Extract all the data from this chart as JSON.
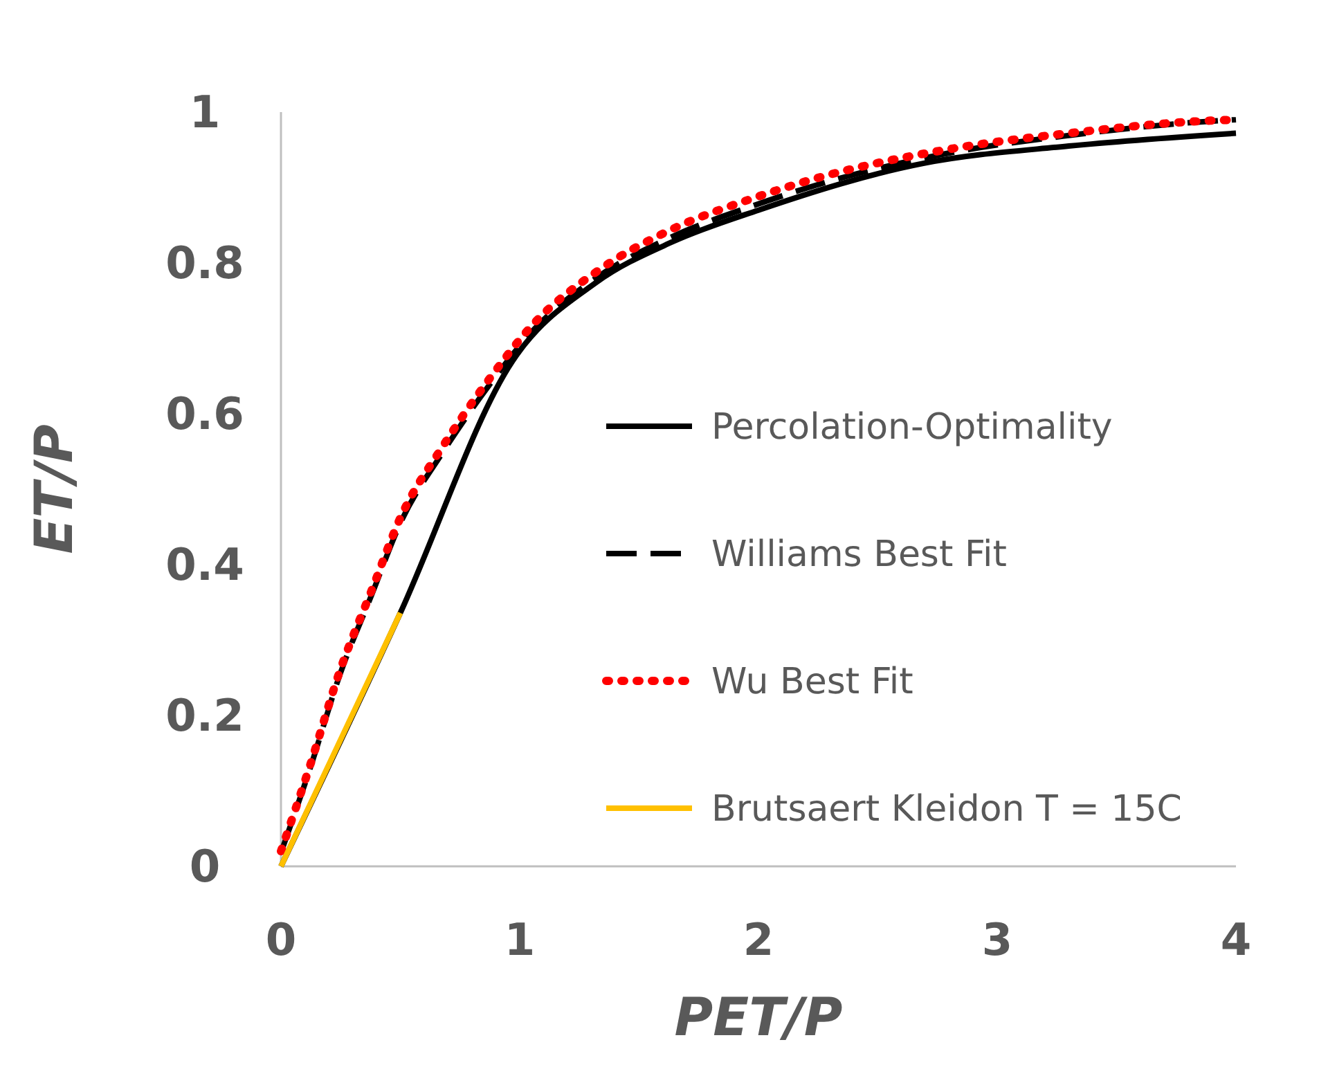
{
  "chart_data": {
    "type": "line",
    "xlabel": "PET/P",
    "ylabel": "ET/P",
    "xlim": [
      0,
      4
    ],
    "xticks": [
      0,
      1,
      2,
      3,
      4
    ],
    "ylim": [
      0,
      1
    ],
    "yticks": [
      0,
      0.2,
      0.4,
      0.6,
      0.8,
      1
    ],
    "grid": false,
    "legend": "bottom right",
    "series": [
      {
        "name": "Percolation-Optimality",
        "color": "#000000",
        "line_style": "solid",
        "x": [
          0,
          0.5,
          0.97,
          1.32,
          1.64,
          2.0,
          2.69,
          3.3,
          4
        ],
        "values": [
          0,
          0.336,
          0.67,
          0.774,
          0.828,
          0.87,
          0.932,
          0.955,
          0.972
        ]
      },
      {
        "name": "Williams Best Fit",
        "color": "#000000",
        "line_style": "dashed",
        "x": [
          0,
          0.12,
          0.25,
          0.38,
          0.5,
          0.68,
          0.87,
          1.06,
          1.32,
          1.64,
          1.97,
          2.24,
          2.82,
          3.3,
          3.85,
          4
        ],
        "values": [
          0.018,
          0.128,
          0.257,
          0.36,
          0.455,
          0.55,
          0.637,
          0.712,
          0.78,
          0.835,
          0.875,
          0.903,
          0.947,
          0.969,
          0.987,
          0.99
        ]
      },
      {
        "name": "Wu Best Fit",
        "color": "#ff0000",
        "line_style": "dotted",
        "x": [
          0,
          0.12,
          0.25,
          0.38,
          0.5,
          0.68,
          0.87,
          1.06,
          1.32,
          1.64,
          1.97,
          2.24,
          2.82,
          3.3,
          3.85,
          4
        ],
        "values": [
          0.02,
          0.132,
          0.262,
          0.366,
          0.462,
          0.558,
          0.645,
          0.72,
          0.788,
          0.845,
          0.885,
          0.912,
          0.952,
          0.972,
          0.988,
          0.99
        ]
      },
      {
        "name": "Brutsaert Kleidon T = 15C",
        "color": "#ffc000",
        "line_style": "solid",
        "x": [
          0,
          0.5
        ],
        "values": [
          0,
          0.336
        ]
      }
    ]
  }
}
